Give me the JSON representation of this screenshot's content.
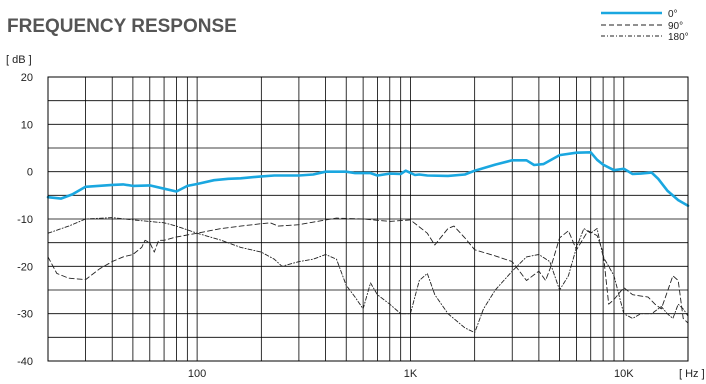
{
  "chart_data": {
    "type": "line",
    "title": "FREQUENCY RESPONSE",
    "ylabel": "[ dB ]",
    "xlabel": "[ Hz ]",
    "x_scale": "log",
    "xlim": [
      20,
      20000
    ],
    "ylim": [
      -40,
      20
    ],
    "y_ticks": [
      20,
      10,
      0,
      -10,
      -20,
      -30,
      -40
    ],
    "y_tick_labels": [
      "20",
      "10",
      "0",
      "-10",
      "-20",
      "-30",
      "-40"
    ],
    "x_tick_labels": [
      {
        "value": 100,
        "label": "100"
      },
      {
        "value": 1000,
        "label": "1K"
      },
      {
        "value": 10000,
        "label": "10K"
      }
    ],
    "grid": true,
    "legend_position": "top-right",
    "series": [
      {
        "name": "0°",
        "color": "#1aa7e0",
        "style": "solid",
        "points": [
          [
            20,
            -5.4
          ],
          [
            23,
            -5.7
          ],
          [
            26,
            -4.8
          ],
          [
            30,
            -3.2
          ],
          [
            40,
            -2.8
          ],
          [
            45,
            -2.7
          ],
          [
            50,
            -3.0
          ],
          [
            60,
            -2.9
          ],
          [
            70,
            -3.6
          ],
          [
            80,
            -4.2
          ],
          [
            90,
            -3.0
          ],
          [
            100,
            -2.6
          ],
          [
            120,
            -1.8
          ],
          [
            140,
            -1.5
          ],
          [
            160,
            -1.4
          ],
          [
            200,
            -1.0
          ],
          [
            230,
            -0.8
          ],
          [
            300,
            -0.8
          ],
          [
            350,
            -0.6
          ],
          [
            400,
            0.0
          ],
          [
            500,
            0.0
          ],
          [
            550,
            -0.3
          ],
          [
            650,
            -0.3
          ],
          [
            700,
            -0.8
          ],
          [
            800,
            -0.4
          ],
          [
            900,
            -0.5
          ],
          [
            950,
            0.2
          ],
          [
            1050,
            -0.7
          ],
          [
            1100,
            -0.6
          ],
          [
            1200,
            -0.8
          ],
          [
            1500,
            -0.9
          ],
          [
            1800,
            -0.6
          ],
          [
            2000,
            0.2
          ],
          [
            2500,
            1.5
          ],
          [
            3000,
            2.4
          ],
          [
            3500,
            2.4
          ],
          [
            3800,
            1.4
          ],
          [
            4200,
            1.6
          ],
          [
            5000,
            3.5
          ],
          [
            6000,
            4.0
          ],
          [
            7000,
            4.1
          ],
          [
            7500,
            2.5
          ],
          [
            8000,
            1.5
          ],
          [
            9000,
            0.3
          ],
          [
            10000,
            0.6
          ],
          [
            11000,
            -0.5
          ],
          [
            12000,
            -0.4
          ],
          [
            13500,
            -0.2
          ],
          [
            14500,
            -1.5
          ],
          [
            16000,
            -4.0
          ],
          [
            18000,
            -6.0
          ],
          [
            20000,
            -7.2
          ]
        ]
      },
      {
        "name": "90°",
        "color": "#222222",
        "style": "dashed",
        "points": [
          [
            20,
            -18
          ],
          [
            22,
            -21.5
          ],
          [
            25,
            -22.5
          ],
          [
            30,
            -22.8
          ],
          [
            35,
            -20.5
          ],
          [
            40,
            -19
          ],
          [
            45,
            -18
          ],
          [
            50,
            -17.5
          ],
          [
            55,
            -16
          ],
          [
            57,
            -14.5
          ],
          [
            60,
            -15
          ],
          [
            63,
            -17
          ],
          [
            66,
            -14.5
          ],
          [
            70,
            -14.5
          ],
          [
            80,
            -13.8
          ],
          [
            100,
            -13
          ],
          [
            130,
            -12
          ],
          [
            160,
            -11.5
          ],
          [
            200,
            -11
          ],
          [
            220,
            -10.8
          ],
          [
            240,
            -11.5
          ],
          [
            300,
            -11.2
          ],
          [
            400,
            -10.2
          ],
          [
            450,
            -9.8
          ],
          [
            600,
            -10
          ],
          [
            800,
            -10.5
          ],
          [
            1000,
            -10.2
          ],
          [
            1200,
            -13
          ],
          [
            1300,
            -15.5
          ],
          [
            1500,
            -12
          ],
          [
            1600,
            -11.5
          ],
          [
            1800,
            -14
          ],
          [
            2000,
            -16.5
          ],
          [
            2500,
            -17.8
          ],
          [
            3000,
            -19
          ],
          [
            3500,
            -23
          ],
          [
            4000,
            -21
          ],
          [
            4300,
            -23
          ],
          [
            4600,
            -19.5
          ],
          [
            5000,
            -14
          ],
          [
            5500,
            -12.5
          ],
          [
            6000,
            -16.5
          ],
          [
            6800,
            -12.5
          ],
          [
            7500,
            -13.5
          ],
          [
            8000,
            -17
          ],
          [
            8500,
            -28
          ],
          [
            9000,
            -27
          ],
          [
            10000,
            -24.5
          ],
          [
            11000,
            -26
          ],
          [
            13000,
            -26.5
          ],
          [
            14000,
            -28
          ],
          [
            15000,
            -29
          ],
          [
            17000,
            -22
          ],
          [
            18000,
            -23
          ],
          [
            19000,
            -31
          ],
          [
            20000,
            -32
          ]
        ]
      },
      {
        "name": "180°",
        "color": "#222222",
        "style": "dashdot",
        "points": [
          [
            20,
            -13
          ],
          [
            25,
            -11.5
          ],
          [
            30,
            -10
          ],
          [
            40,
            -9.7
          ],
          [
            50,
            -10.2
          ],
          [
            70,
            -10.8
          ],
          [
            80,
            -11.5
          ],
          [
            100,
            -13
          ],
          [
            130,
            -14.5
          ],
          [
            160,
            -16
          ],
          [
            200,
            -17
          ],
          [
            230,
            -18.5
          ],
          [
            250,
            -20
          ],
          [
            300,
            -19
          ],
          [
            350,
            -18.5
          ],
          [
            400,
            -17.5
          ],
          [
            450,
            -18.5
          ],
          [
            500,
            -24
          ],
          [
            550,
            -26.5
          ],
          [
            600,
            -29
          ],
          [
            650,
            -23.5
          ],
          [
            700,
            -26
          ],
          [
            800,
            -28
          ],
          [
            900,
            -30
          ],
          [
            1000,
            -30
          ],
          [
            1100,
            -23
          ],
          [
            1200,
            -21.5
          ],
          [
            1300,
            -26
          ],
          [
            1500,
            -30
          ],
          [
            1800,
            -33
          ],
          [
            2000,
            -34
          ],
          [
            2200,
            -29
          ],
          [
            2500,
            -25
          ],
          [
            3000,
            -21
          ],
          [
            3500,
            -18
          ],
          [
            4000,
            -17.5
          ],
          [
            4500,
            -19
          ],
          [
            5000,
            -25
          ],
          [
            5500,
            -22
          ],
          [
            6000,
            -16
          ],
          [
            6500,
            -12
          ],
          [
            7000,
            -13
          ],
          [
            7500,
            -12
          ],
          [
            8000,
            -18
          ],
          [
            8500,
            -20
          ],
          [
            9000,
            -22
          ],
          [
            10000,
            -30
          ],
          [
            11000,
            -31
          ],
          [
            12000,
            -30
          ],
          [
            13500,
            -30
          ],
          [
            15000,
            -28.5
          ],
          [
            16000,
            -30
          ],
          [
            17000,
            -31
          ],
          [
            18000,
            -28
          ],
          [
            19000,
            -29
          ],
          [
            20000,
            -30.5
          ]
        ]
      }
    ]
  }
}
